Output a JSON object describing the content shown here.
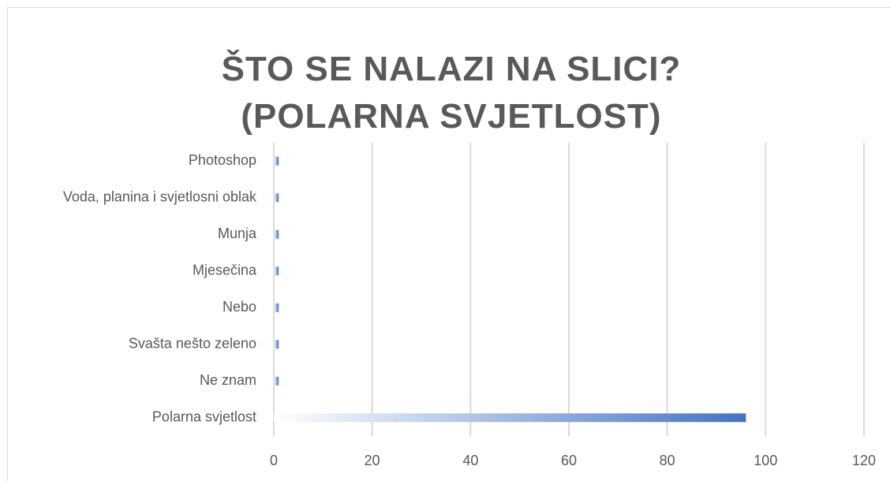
{
  "chart_data": {
    "type": "barh",
    "title": "ŠTO SE NALAZI NA SLICI? (POLARNA SVJETLOST)",
    "categories": [
      "Photoshop",
      "Voda, planina i svjetlosni oblak",
      "Munja",
      "Mjesečina",
      "Nebo",
      "Svašta nešto zeleno",
      "Ne znam",
      "Polarna svjetlost"
    ],
    "values": [
      1,
      1,
      1,
      1,
      1,
      1,
      1,
      96
    ],
    "color": "#4472c4",
    "xlim": [
      0,
      120
    ],
    "xticks": [
      0,
      20,
      40,
      60,
      80,
      100,
      120
    ],
    "grid": true
  }
}
